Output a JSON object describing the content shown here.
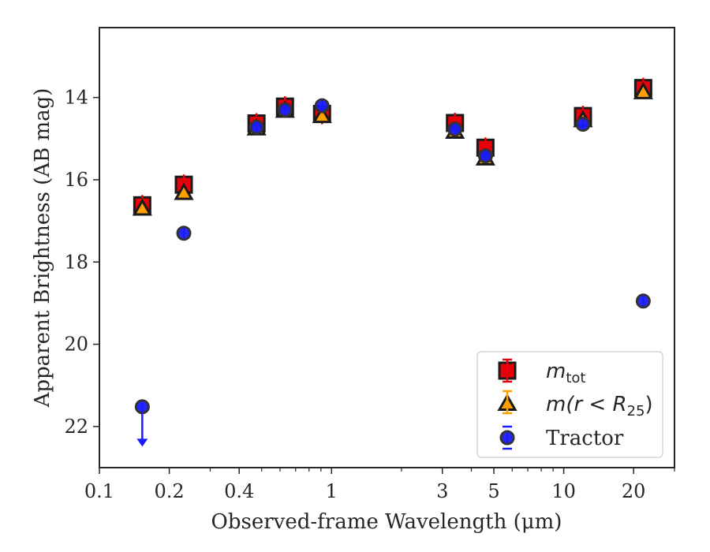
{
  "chart_data": {
    "type": "scatter",
    "xlabel": "Observed-frame Wavelength (μm)",
    "ylabel": "Apparent Brightness (AB mag)",
    "xscale": "log",
    "xlim": [
      0.1,
      30
    ],
    "ylim": [
      23.0,
      12.3
    ],
    "y_inverted": true,
    "grid": false,
    "legend_position": "lower-right",
    "x_ticks": [
      {
        "value": 0.1,
        "label": "0.1"
      },
      {
        "value": 0.2,
        "label": "0.2"
      },
      {
        "value": 0.4,
        "label": "0.4"
      },
      {
        "value": 1,
        "label": "1"
      },
      {
        "value": 3,
        "label": "3"
      },
      {
        "value": 5,
        "label": "5"
      },
      {
        "value": 10,
        "label": "10"
      },
      {
        "value": 20,
        "label": "20"
      }
    ],
    "y_ticks": [
      {
        "value": 14,
        "label": "14"
      },
      {
        "value": 16,
        "label": "16"
      },
      {
        "value": 18,
        "label": "18"
      },
      {
        "value": 20,
        "label": "20"
      },
      {
        "value": 22,
        "label": "22"
      }
    ],
    "series": [
      {
        "name": "m_tot",
        "legend_main": "m",
        "legend_sub": "tot",
        "marker": "square",
        "color": "#e8000b",
        "edge": "#1a1a1a",
        "x": [
          0.153,
          0.231,
          0.475,
          0.63,
          0.91,
          3.4,
          4.6,
          12.1,
          22.0
        ],
        "y": [
          16.62,
          16.12,
          14.63,
          14.22,
          14.4,
          14.62,
          15.22,
          14.45,
          13.77
        ]
      },
      {
        "name": "m(r < R25)",
        "legend_main": "m(r < R",
        "legend_sub": "25",
        "legend_end": ")",
        "marker": "triangle",
        "color": "#ff9f00",
        "edge": "#1a1a1a",
        "x": [
          0.153,
          0.231,
          0.475,
          0.63,
          0.91,
          3.4,
          4.6,
          12.1,
          22.0
        ],
        "y": [
          16.7,
          16.32,
          14.75,
          14.32,
          14.45,
          14.83,
          15.48,
          14.55,
          13.87
        ]
      },
      {
        "name": "Tractor",
        "marker": "circle",
        "color": "#1a1aff",
        "edge": "#333333",
        "x": [
          0.153,
          0.231,
          0.475,
          0.63,
          0.91,
          3.4,
          4.6,
          12.1,
          22.0
        ],
        "y": [
          21.52,
          17.3,
          14.72,
          14.3,
          14.2,
          14.77,
          15.42,
          14.65,
          18.95
        ],
        "upper_limit_index": 0,
        "upper_limit_arrow_to": 22.45
      }
    ]
  }
}
